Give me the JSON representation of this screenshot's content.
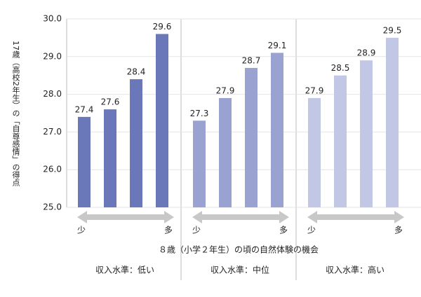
{
  "chart_data": {
    "type": "bar",
    "y_label": "17歳（高校2年生）の「自尊感情」の得点",
    "x_label": "８歳（小学２年生）の頃の自然体験の機会",
    "arrow_labels": [
      "少",
      "多"
    ],
    "groups": [
      {
        "name": "収入水準：低い",
        "color": "#6a77b8",
        "values": [
          27.4,
          27.6,
          28.4,
          29.6
        ]
      },
      {
        "name": "収入水準：中位",
        "color": "#99a2d1",
        "values": [
          27.3,
          27.9,
          28.7,
          29.1
        ]
      },
      {
        "name": "収入水準：高い",
        "color": "#c2c7e6",
        "values": [
          27.9,
          28.5,
          28.9,
          29.5
        ]
      }
    ],
    "ylim": [
      25,
      30
    ],
    "yticks": [
      {
        "value": 25,
        "label": "25.0"
      },
      {
        "value": 26,
        "label": "26.0"
      },
      {
        "value": 27,
        "label": "27.0"
      },
      {
        "value": 28,
        "label": "28.0"
      },
      {
        "value": 29,
        "label": "29.0"
      },
      {
        "value": 30,
        "label": "30.0"
      }
    ],
    "grid": true
  }
}
